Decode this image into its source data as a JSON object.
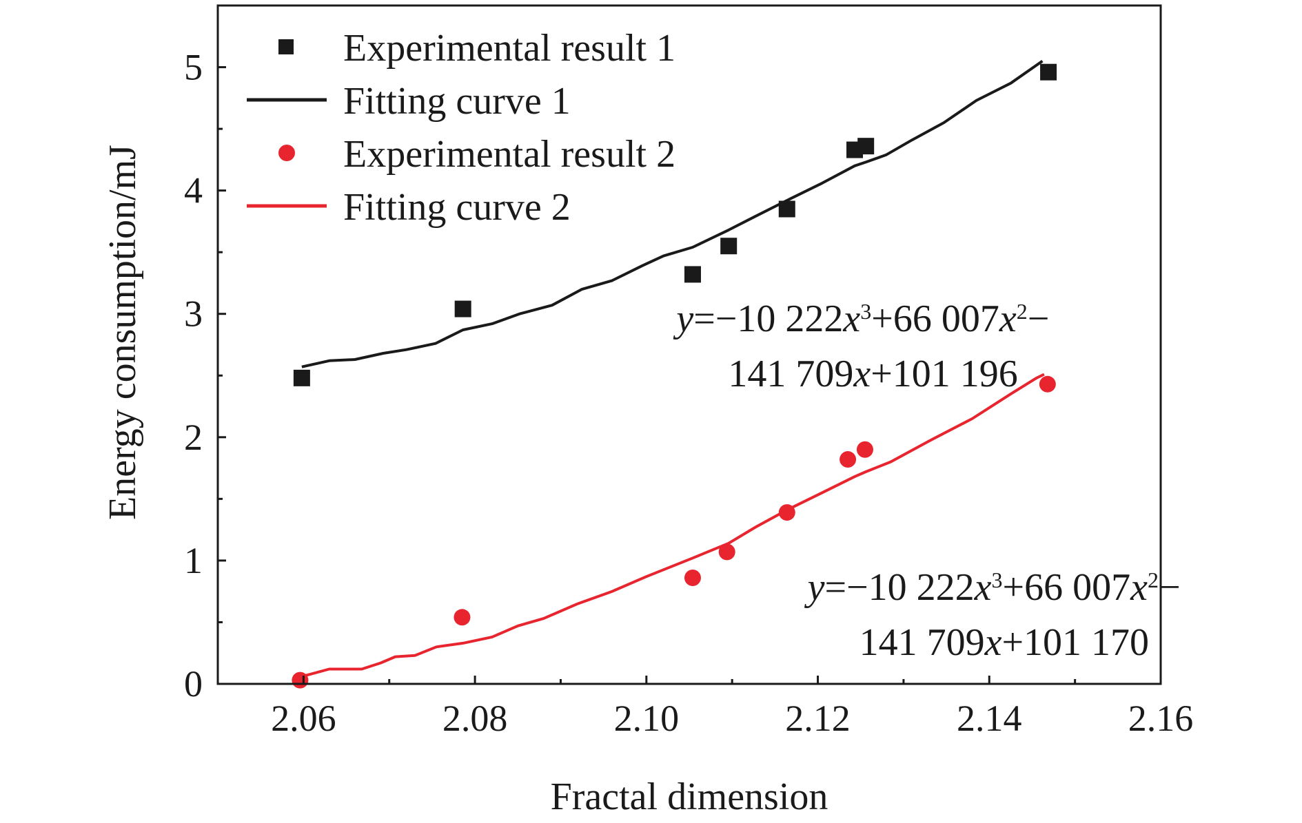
{
  "chart_data": {
    "type": "scatter",
    "title": "",
    "xlabel": "Fractal dimension",
    "ylabel": "Energy consumption/mJ",
    "xlim": [
      2.05,
      2.16
    ],
    "ylim": [
      0,
      5.5
    ],
    "x_ticks": [
      "2.06",
      "2.08",
      "2.10",
      "2.12",
      "2.14",
      "2.16"
    ],
    "y_ticks": [
      "0",
      "1",
      "2",
      "3",
      "4",
      "5"
    ],
    "grid": false,
    "legend_position": "top-left",
    "series": [
      {
        "name": "Experimental result 1",
        "kind": "scatter",
        "marker": "square",
        "color": "#1a1a1a",
        "points": [
          [
            2.0598,
            2.48
          ],
          [
            2.0786,
            3.04
          ],
          [
            2.1054,
            3.32
          ],
          [
            2.1096,
            3.55
          ],
          [
            2.1164,
            3.85
          ],
          [
            2.1243,
            4.33
          ],
          [
            2.1256,
            4.36
          ],
          [
            2.1469,
            4.96
          ]
        ]
      },
      {
        "name": "Fitting curve 1",
        "kind": "line",
        "color": "#1a1a1a",
        "points": [
          [
            2.0598,
            2.57
          ],
          [
            2.063,
            2.62
          ],
          [
            2.066,
            2.63
          ],
          [
            2.0693,
            2.68
          ],
          [
            2.072,
            2.71
          ],
          [
            2.0754,
            2.76
          ],
          [
            2.0786,
            2.87
          ],
          [
            2.082,
            2.92
          ],
          [
            2.0852,
            3.0
          ],
          [
            2.089,
            3.07
          ],
          [
            2.0925,
            3.2
          ],
          [
            2.096,
            3.27
          ],
          [
            2.0995,
            3.39
          ],
          [
            2.102,
            3.47
          ],
          [
            2.1054,
            3.54
          ],
          [
            2.1096,
            3.68
          ],
          [
            2.1127,
            3.79
          ],
          [
            2.1164,
            3.92
          ],
          [
            2.1205,
            4.06
          ],
          [
            2.1243,
            4.2
          ],
          [
            2.1256,
            4.23
          ],
          [
            2.128,
            4.29
          ],
          [
            2.131,
            4.41
          ],
          [
            2.1347,
            4.55
          ],
          [
            2.1385,
            4.73
          ],
          [
            2.1425,
            4.87
          ],
          [
            2.1462,
            5.05
          ]
        ]
      },
      {
        "name": "Experimental result 2",
        "kind": "scatter",
        "marker": "circle",
        "color": "#e8252e",
        "points": [
          [
            2.0596,
            0.03
          ],
          [
            2.0785,
            0.54
          ],
          [
            2.1054,
            0.86
          ],
          [
            2.1094,
            1.07
          ],
          [
            2.1164,
            1.39
          ],
          [
            2.1235,
            1.82
          ],
          [
            2.1255,
            1.9
          ],
          [
            2.1468,
            2.43
          ]
        ]
      },
      {
        "name": "Fitting curve 2",
        "kind": "line",
        "color": "#e8252e",
        "points": [
          [
            2.0598,
            0.06
          ],
          [
            2.063,
            0.12
          ],
          [
            2.0668,
            0.12
          ],
          [
            2.069,
            0.17
          ],
          [
            2.0707,
            0.22
          ],
          [
            2.073,
            0.23
          ],
          [
            2.0755,
            0.3
          ],
          [
            2.0786,
            0.33
          ],
          [
            2.082,
            0.38
          ],
          [
            2.085,
            0.47
          ],
          [
            2.088,
            0.53
          ],
          [
            2.092,
            0.65
          ],
          [
            2.096,
            0.75
          ],
          [
            2.1,
            0.87
          ],
          [
            2.1054,
            1.02
          ],
          [
            2.1096,
            1.14
          ],
          [
            2.1127,
            1.27
          ],
          [
            2.1164,
            1.41
          ],
          [
            2.1205,
            1.55
          ],
          [
            2.1243,
            1.68
          ],
          [
            2.1256,
            1.72
          ],
          [
            2.1285,
            1.8
          ],
          [
            2.133,
            1.97
          ],
          [
            2.138,
            2.15
          ],
          [
            2.1425,
            2.35
          ],
          [
            2.1455,
            2.48
          ],
          [
            2.1464,
            2.51
          ]
        ]
      }
    ],
    "annotations": [
      {
        "id": "eq1",
        "x": 2.1035,
        "y": 2.86,
        "line1": [
          {
            "text": "y",
            "italic": true
          },
          {
            "text": "=−10 222"
          },
          {
            "text": "x",
            "italic": true
          },
          {
            "text": "3",
            "sup": true
          },
          {
            "text": "+66 007"
          },
          {
            "text": "x",
            "italic": true
          },
          {
            "text": "2",
            "sup": true
          },
          {
            "text": "−"
          }
        ],
        "line2": [
          {
            "text": "141 709"
          },
          {
            "text": "x",
            "italic": true
          },
          {
            "text": "+101 196"
          }
        ]
      },
      {
        "id": "eq2",
        "x": 2.1188,
        "y": 0.68,
        "line1": [
          {
            "text": "y",
            "italic": true
          },
          {
            "text": "=−10 222"
          },
          {
            "text": "x",
            "italic": true
          },
          {
            "text": "3",
            "sup": true
          },
          {
            "text": "+66 007"
          },
          {
            "text": "x",
            "italic": true
          },
          {
            "text": "2",
            "sup": true
          },
          {
            "text": "−"
          }
        ],
        "line2": [
          {
            "text": "141 709"
          },
          {
            "text": "x",
            "italic": true
          },
          {
            "text": "+101 170"
          }
        ]
      }
    ]
  }
}
